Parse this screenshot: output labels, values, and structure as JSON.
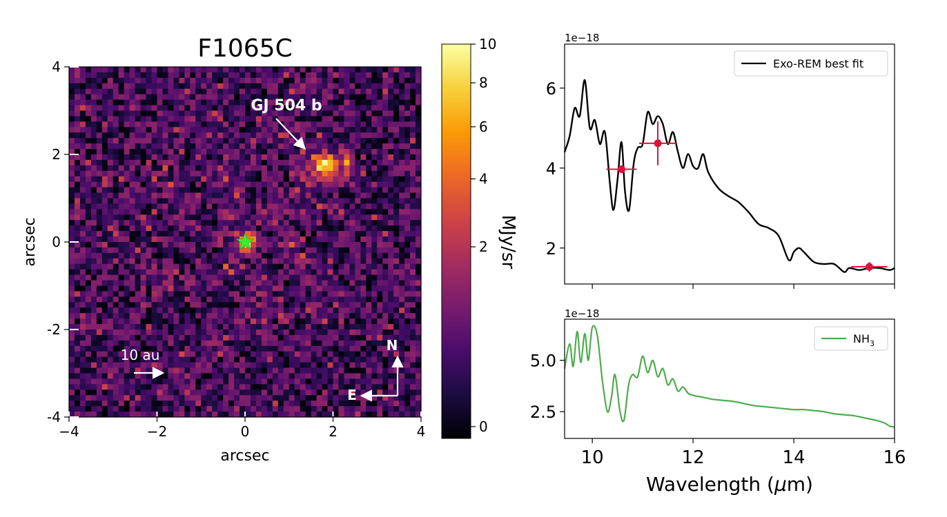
{
  "chart_data": [
    {
      "type": "heatmap",
      "title": "F1065C",
      "xlabel": "arcsec",
      "ylabel": "arcsec",
      "xlim": [
        -4,
        4
      ],
      "ylim": [
        -4,
        4
      ],
      "xticks": [
        "−4",
        "−2",
        "0",
        "2",
        "4"
      ],
      "yticks": [
        "4",
        "2",
        "0",
        "-2",
        "-4"
      ],
      "colorbar": {
        "label": "MJy/sr",
        "range": [
          0,
          10
        ],
        "ticks": [
          "10",
          "8",
          "6",
          "4",
          "2",
          "0"
        ],
        "colormap": [
          "#000004",
          "#1b0c41",
          "#4a0c6b",
          "#781c6d",
          "#a52c60",
          "#cf4446",
          "#ed6925",
          "#fb9b06",
          "#f7d13d",
          "#fcffa4"
        ]
      },
      "annotations": {
        "planet_label": "GJ 504 b",
        "planet_position_arcsec": [
          1.8,
          1.75
        ],
        "star_position_arcsec": [
          0,
          0
        ],
        "scale_bar": "10 au",
        "compass_north": "N",
        "compass_east": "E"
      }
    },
    {
      "type": "line",
      "exponent_label": "1e−18",
      "legend": "Exo-REM best fit",
      "xlim": [
        9.45,
        16
      ],
      "ylim": [
        1.1,
        7.1
      ],
      "yticks": [
        "6",
        "4",
        "2"
      ],
      "x": [
        9.45,
        9.55,
        9.65,
        9.75,
        9.85,
        9.95,
        10.05,
        10.15,
        10.25,
        10.35,
        10.42,
        10.5,
        10.58,
        10.65,
        10.73,
        10.82,
        10.9,
        11.0,
        11.1,
        11.2,
        11.3,
        11.4,
        11.5,
        11.6,
        11.7,
        11.8,
        11.9,
        12.0,
        12.1,
        12.2,
        12.3,
        12.5,
        12.7,
        12.9,
        13.1,
        13.3,
        13.5,
        13.7,
        13.9,
        14.0,
        14.1,
        14.2,
        14.4,
        14.6,
        14.8,
        15.0,
        15.1,
        15.3,
        15.5,
        15.7,
        15.9,
        16.0
      ],
      "y": [
        4.4,
        4.8,
        5.5,
        5.3,
        6.2,
        5.0,
        5.2,
        4.6,
        4.9,
        3.6,
        2.95,
        3.7,
        4.65,
        3.4,
        2.95,
        4.1,
        4.5,
        4.6,
        5.4,
        5.1,
        5.3,
        5.1,
        4.6,
        4.9,
        4.4,
        4.0,
        4.35,
        4.05,
        4.0,
        4.35,
        3.9,
        3.5,
        3.3,
        3.15,
        2.9,
        2.6,
        2.5,
        2.3,
        1.7,
        1.9,
        2.0,
        1.9,
        1.65,
        1.6,
        1.6,
        1.4,
        1.5,
        1.45,
        1.5,
        1.5,
        1.45,
        1.5
      ],
      "data_points": [
        {
          "x": 10.58,
          "y": 3.97,
          "xerr": 0.3,
          "yerr": 0.1
        },
        {
          "x": 11.3,
          "y": 4.62,
          "xerr": 0.37,
          "yerr": 0.55
        },
        {
          "x": 15.5,
          "y": 1.53,
          "xerr": 0.36,
          "yerr": 0.12
        }
      ],
      "line_color": "#000000",
      "point_color": "#dc143c"
    },
    {
      "type": "line",
      "exponent_label": "1e−18",
      "legend_base": "NH",
      "legend_sub": "3",
      "xlabel_base": "Wavelength (",
      "xlabel_mu": "μ",
      "xlabel_end": "m)",
      "xlim": [
        9.45,
        16
      ],
      "ylim": [
        1.2,
        7.0
      ],
      "xticks": [
        "10",
        "12",
        "14",
        "16"
      ],
      "yticks": [
        "5.0",
        "2.5"
      ],
      "x": [
        9.45,
        9.55,
        9.62,
        9.7,
        9.77,
        9.85,
        9.92,
        10.0,
        10.1,
        10.2,
        10.3,
        10.38,
        10.45,
        10.55,
        10.63,
        10.72,
        10.8,
        10.9,
        11.0,
        11.1,
        11.2,
        11.3,
        11.4,
        11.5,
        11.6,
        11.7,
        11.8,
        11.9,
        12.0,
        12.2,
        12.4,
        12.6,
        12.8,
        13.0,
        13.2,
        13.4,
        13.6,
        13.8,
        14.0,
        14.2,
        14.4,
        14.6,
        14.8,
        15.0,
        15.2,
        15.4,
        15.6,
        15.8,
        15.9,
        16.0
      ],
      "y": [
        4.6,
        5.8,
        4.7,
        6.4,
        4.9,
        6.3,
        5.0,
        6.6,
        6.2,
        4.0,
        2.5,
        3.2,
        4.3,
        2.5,
        2.1,
        3.8,
        4.3,
        4.2,
        5.2,
        4.4,
        5.0,
        4.2,
        4.6,
        3.8,
        4.1,
        3.5,
        3.7,
        3.4,
        3.3,
        3.2,
        3.1,
        3.05,
        3.0,
        2.9,
        2.8,
        2.75,
        2.7,
        2.65,
        2.6,
        2.6,
        2.55,
        2.5,
        2.4,
        2.35,
        2.3,
        2.2,
        2.1,
        1.95,
        1.8,
        1.75
      ],
      "line_color": "#4cab4c"
    }
  ]
}
